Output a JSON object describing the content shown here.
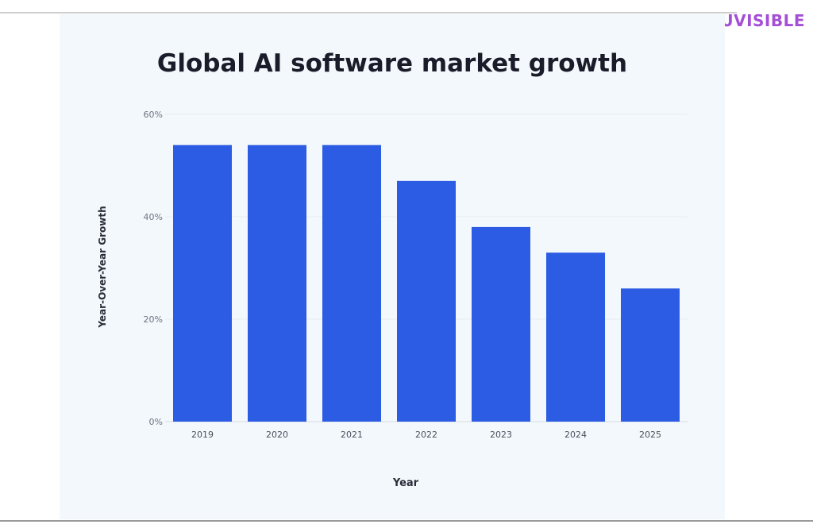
{
  "brand": {
    "logo_text": "UVISIBLE",
    "logo_color": "#a54fd6"
  },
  "chart_data": {
    "type": "bar",
    "title": "Global AI software market growth",
    "xlabel": "Year",
    "ylabel": "Year-Over-Year Growth",
    "categories": [
      "2019",
      "2020",
      "2021",
      "2022",
      "2023",
      "2024",
      "2025"
    ],
    "values": [
      54,
      54,
      54,
      47,
      38,
      33,
      26
    ],
    "value_unit": "%",
    "ylim": [
      0,
      60
    ],
    "yticks": [
      0,
      20,
      40,
      60
    ],
    "ytick_labels": [
      "0%",
      "20%",
      "40%",
      "60%"
    ],
    "grid": true,
    "legend": "none",
    "bar_color": "#2c5ce3",
    "background_color": "#f3f8fc"
  }
}
